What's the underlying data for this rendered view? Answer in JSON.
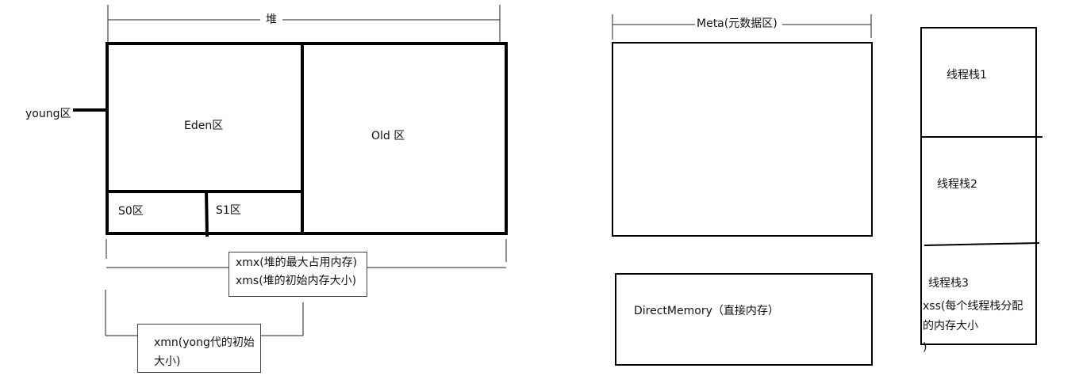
{
  "heap": {
    "title": "堆",
    "young_label": "young区",
    "eden_label": "Eden区",
    "s0_label": "S0区",
    "s1_label": "S1区",
    "old_label": "Old 区"
  },
  "heap_notes": {
    "xmx": "xmx(堆的最大占用内存)",
    "xms": "xms(堆的初始内存大小)"
  },
  "young_note": {
    "line1": "xmn(yong代的初始",
    "line2": "大小)"
  },
  "meta": {
    "title": "Meta(元数据区)"
  },
  "direct_memory": {
    "label": "DirectMemory（直接内存）"
  },
  "thread_stacks": {
    "stack1": "线程栈1",
    "stack2": "线程栈2",
    "stack3": "线程栈3",
    "xss_line1": "xss(每个线程栈分配",
    "xss_line2": "的内存大小",
    "xss_line3": ")"
  }
}
